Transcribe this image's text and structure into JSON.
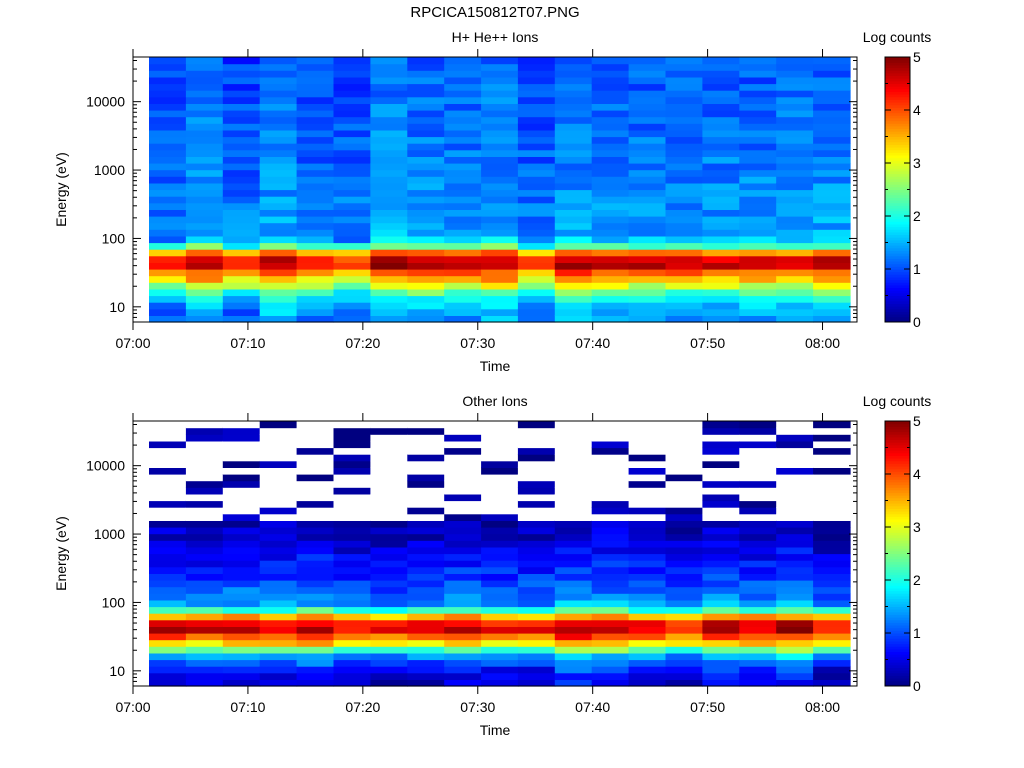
{
  "figure_title": "RPCICA150812T07.PNG",
  "colorbar_label": "Log counts",
  "chart_data": [
    {
      "type": "heatmap",
      "title": "H+ He++ Ions",
      "xlabel": "Time",
      "ylabel": "Energy (eV)",
      "yscale": "log",
      "ylim": [
        6,
        45000
      ],
      "x_ticks": [
        "07:00",
        "07:10",
        "07:20",
        "07:30",
        "07:40",
        "07:50",
        "08:00"
      ],
      "y_ticks": [
        "10",
        "100",
        "1000",
        "10000"
      ],
      "x_range": [
        "07:00",
        "08:03"
      ],
      "colorbar": {
        "label": "Log counts",
        "range": [
          0,
          5
        ],
        "ticks": [
          "0",
          "1",
          "2",
          "3",
          "4",
          "5"
        ],
        "colormap": "jet"
      },
      "time_bins": [
        "07:01",
        "07:04",
        "07:08",
        "07:11",
        "07:14",
        "07:17",
        "07:20",
        "07:24",
        "07:27",
        "07:30",
        "07:34",
        "07:37",
        "07:40",
        "07:43",
        "07:47",
        "07:50",
        "07:53",
        "07:57",
        "08:00"
      ],
      "energy_profile": [
        {
          "energy": 8,
          "log_counts": 1.3
        },
        {
          "energy": 12,
          "log_counts": 1.6
        },
        {
          "energy": 17,
          "log_counts": 2.3
        },
        {
          "energy": 25,
          "log_counts": 3.3
        },
        {
          "energy": 32,
          "log_counts": 3.8
        },
        {
          "energy": 40,
          "log_counts": 4.6
        },
        {
          "energy": 52,
          "log_counts": 4.4
        },
        {
          "energy": 65,
          "log_counts": 3.4
        },
        {
          "energy": 80,
          "log_counts": 2.0
        },
        {
          "energy": 100,
          "log_counts": 1.4
        },
        {
          "energy": 1000,
          "log_counts": 1.2
        },
        {
          "energy": 10000,
          "log_counts": 1.1
        },
        {
          "energy": 40000,
          "log_counts": 1.0
        }
      ]
    },
    {
      "type": "heatmap",
      "title": "Other Ions",
      "xlabel": "Time",
      "ylabel": "Energy (eV)",
      "yscale": "log",
      "ylim": [
        6,
        45000
      ],
      "x_ticks": [
        "07:00",
        "07:10",
        "07:20",
        "07:30",
        "07:40",
        "07:50",
        "08:00"
      ],
      "y_ticks": [
        "10",
        "100",
        "1000",
        "10000"
      ],
      "x_range": [
        "07:00",
        "08:03"
      ],
      "colorbar": {
        "label": "Log counts",
        "range": [
          0,
          5
        ],
        "ticks": [
          "0",
          "1",
          "2",
          "3",
          "4",
          "5"
        ],
        "colormap": "jet"
      },
      "time_bins": [
        "07:01",
        "07:04",
        "07:08",
        "07:11",
        "07:14",
        "07:17",
        "07:20",
        "07:24",
        "07:27",
        "07:30",
        "07:34",
        "07:37",
        "07:40",
        "07:43",
        "07:47",
        "07:50",
        "07:53",
        "07:57",
        "08:00"
      ],
      "energy_profile": [
        {
          "energy": 8,
          "log_counts": 0.5
        },
        {
          "energy": 12,
          "log_counts": 0.9
        },
        {
          "energy": 17,
          "log_counts": 1.5
        },
        {
          "energy": 25,
          "log_counts": 3.3
        },
        {
          "energy": 32,
          "log_counts": 3.9
        },
        {
          "energy": 40,
          "log_counts": 4.6
        },
        {
          "energy": 52,
          "log_counts": 4.4
        },
        {
          "energy": 65,
          "log_counts": 3.3
        },
        {
          "energy": 80,
          "log_counts": 2.0
        },
        {
          "energy": 100,
          "log_counts": 1.3
        },
        {
          "energy": 300,
          "log_counts": 0.8
        },
        {
          "energy": 800,
          "log_counts": 0.4
        },
        {
          "energy": 2000,
          "log_counts": 0.2
        },
        {
          "energy": 40000,
          "log_counts": 0.1
        }
      ]
    }
  ]
}
